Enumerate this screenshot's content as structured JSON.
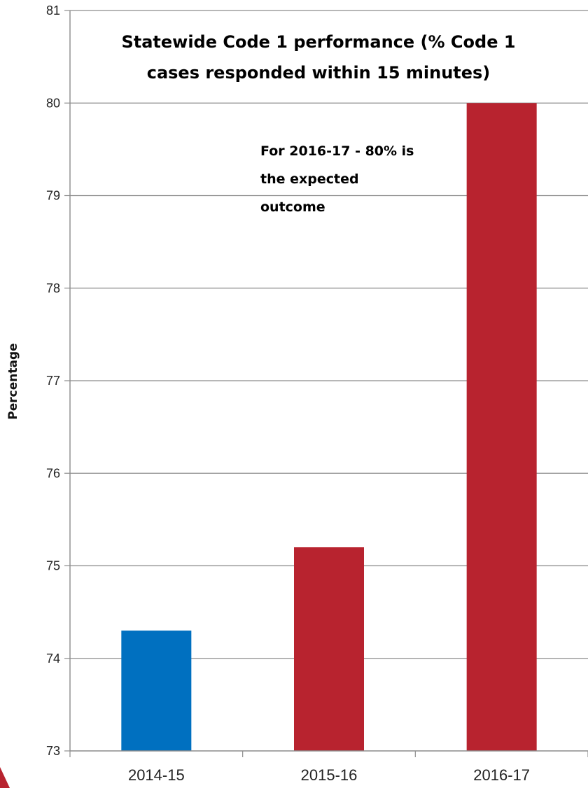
{
  "chart_data": {
    "type": "bar",
    "title_lines": [
      "Statewide Code 1 performance (% Code 1",
      "cases responded within 15 minutes)"
    ],
    "ylabel": "Percentage",
    "xlabel": "",
    "categories": [
      "2014-15",
      "2015-16",
      "2016-17"
    ],
    "values": [
      74.3,
      75.2,
      80.0
    ],
    "bar_colors": [
      "#0070c0",
      "#b8232f",
      "#b8232f"
    ],
    "ylim": [
      73,
      81
    ],
    "yticks": [
      "73",
      "74",
      "75",
      "76",
      "77",
      "78",
      "79",
      "80",
      "81"
    ],
    "grid": true,
    "annotation_lines": [
      "For 2016-17 - 80% is",
      "the expected",
      "outcome"
    ]
  }
}
